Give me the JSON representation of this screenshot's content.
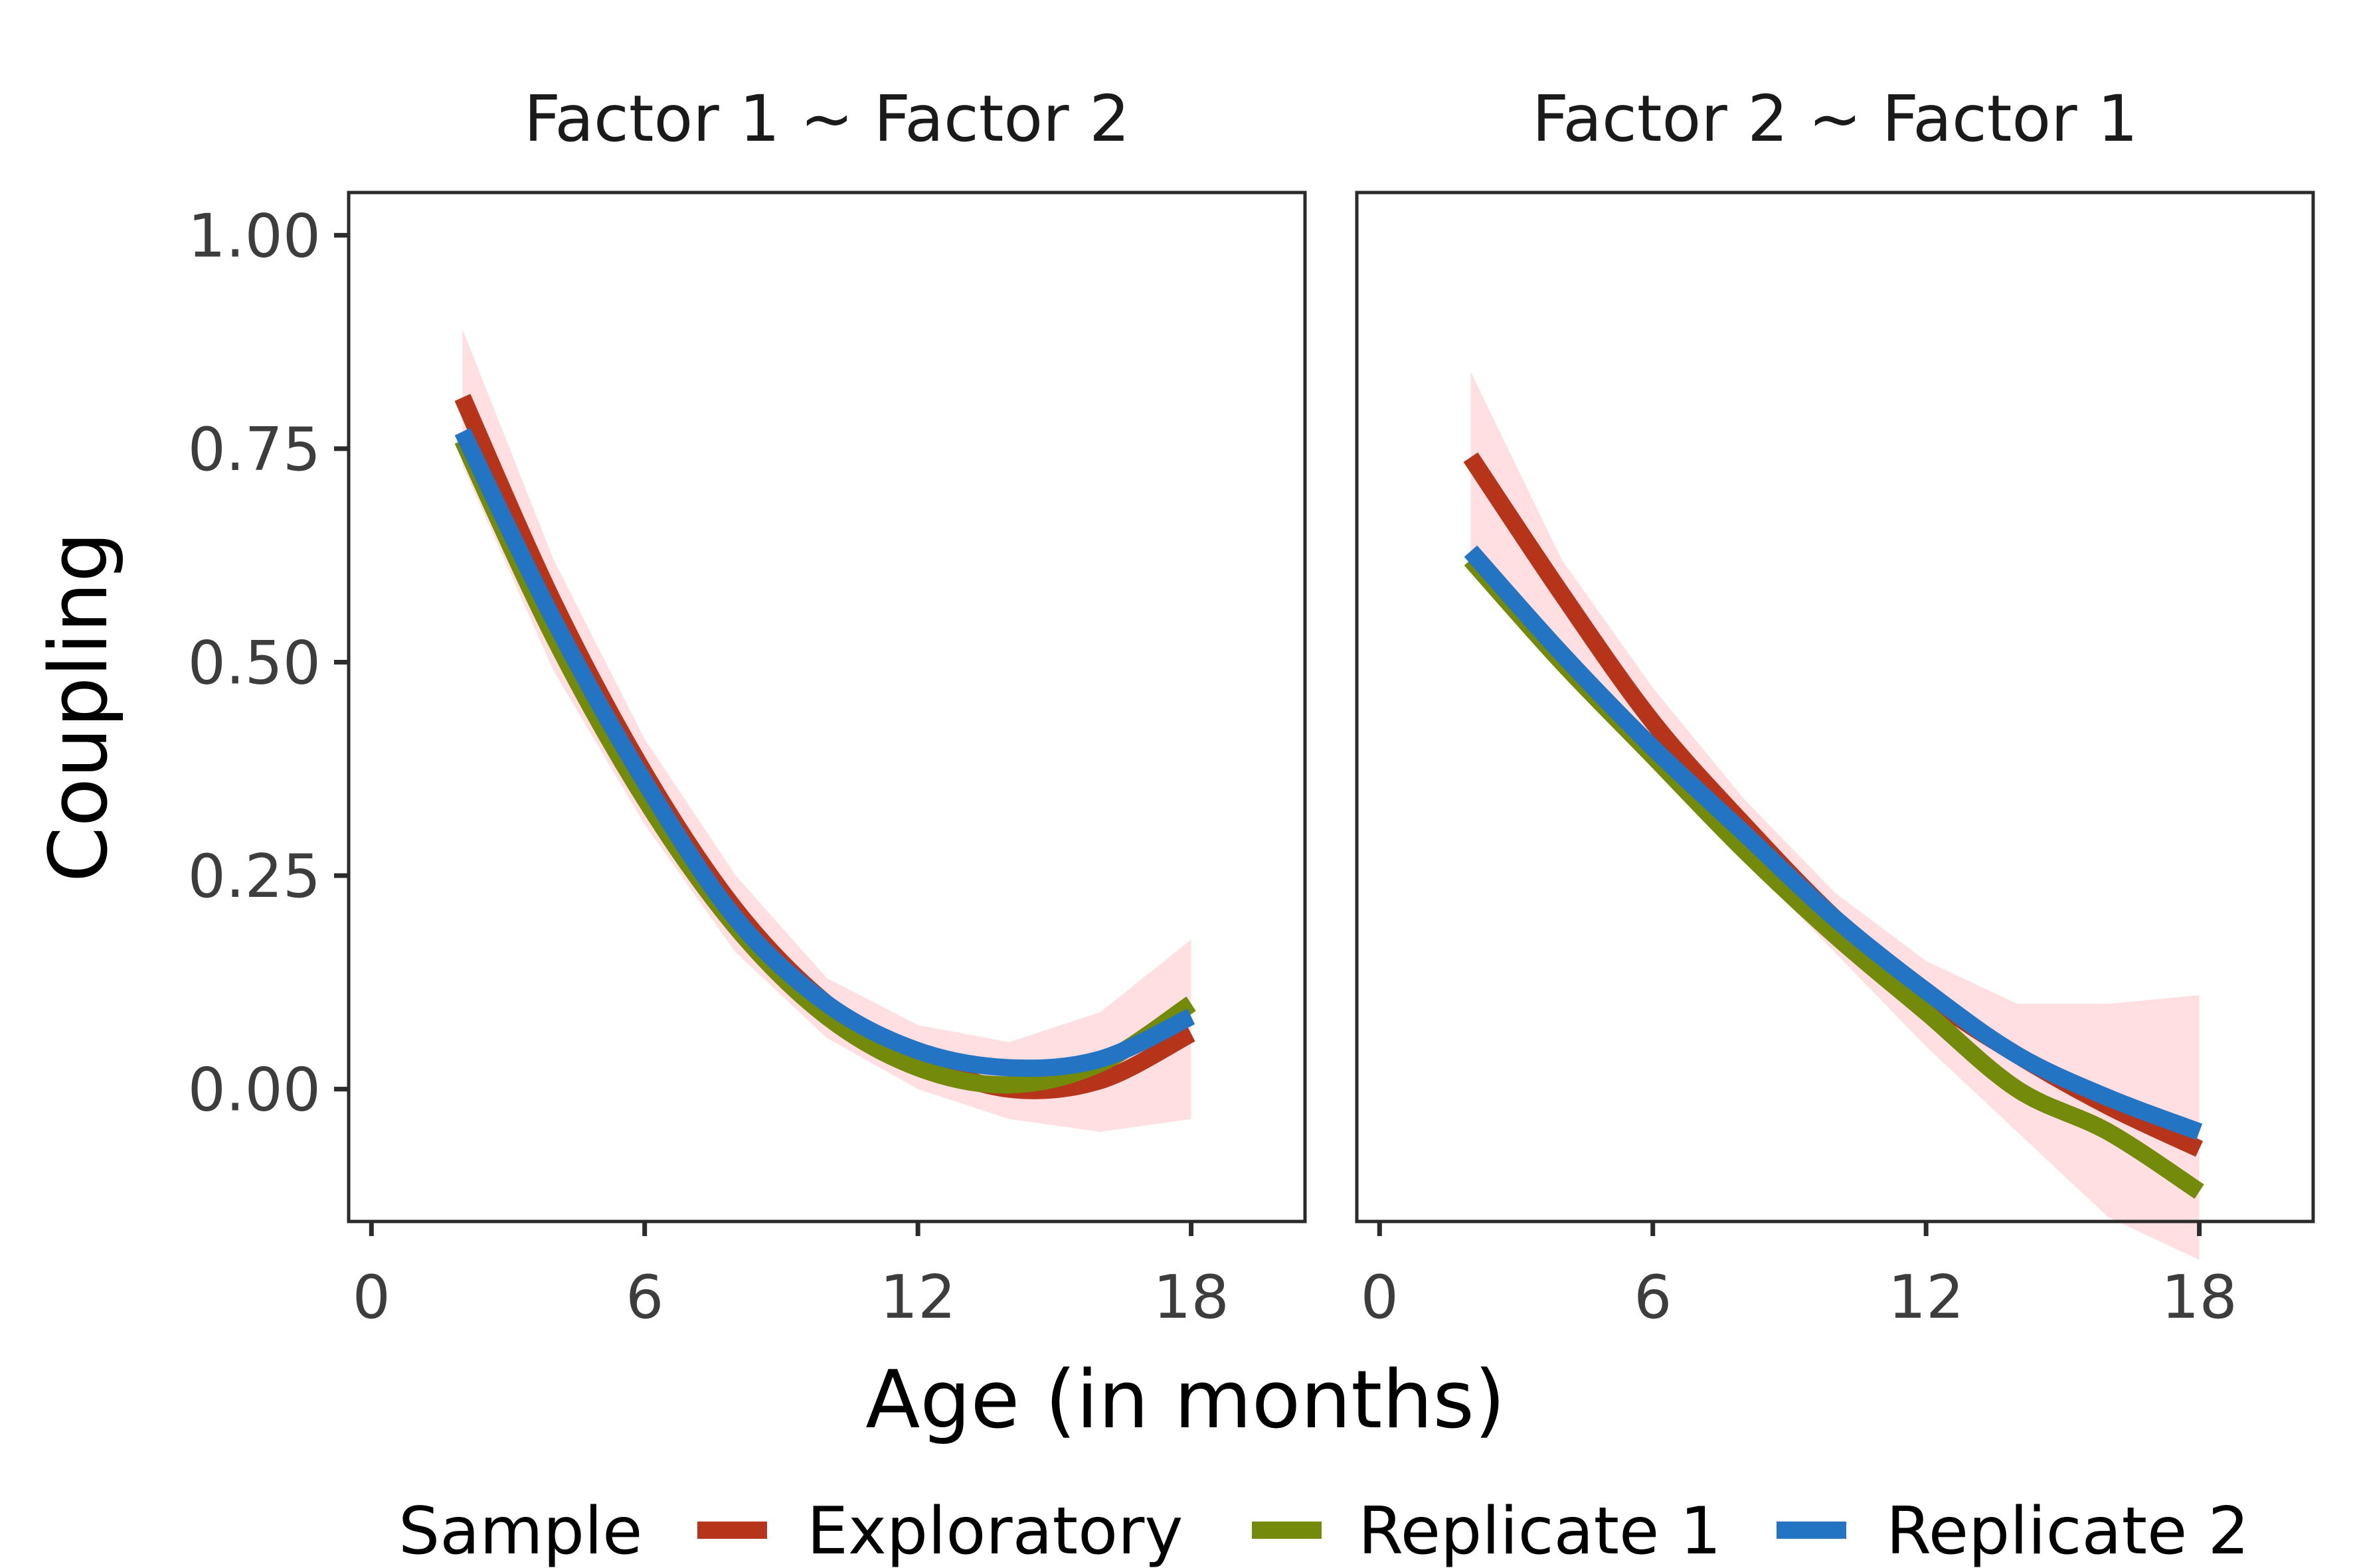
{
  "chart_data": {
    "type": "line",
    "xlabel": "Age (in months)",
    "ylabel": "Coupling",
    "xlim": [
      -0.5,
      20.5
    ],
    "ylim": [
      -0.155,
      1.05
    ],
    "xticks": [
      0,
      6,
      12,
      18
    ],
    "xtick_labels": [
      "0",
      "6",
      "12",
      "18"
    ],
    "yticks": [
      0,
      0.25,
      0.5,
      0.75,
      1
    ],
    "ytick_labels": [
      "0.00",
      "0.25",
      "0.50",
      "0.75",
      "1.00"
    ],
    "grid": false,
    "legend": {
      "title": "Sample",
      "position": "bottom",
      "entries": [
        "Exploratory",
        "Replicate 1",
        "Replicate 2"
      ]
    },
    "colors": {
      "Exploratory": "#b5341a",
      "Replicate 1": "#738a0a",
      "Replicate 2": "#2474c4",
      "ribbon": "#ffd9dc"
    },
    "panels": [
      {
        "title": "Factor 1 ~ Factor 2",
        "x": [
          2,
          4,
          6,
          8,
          10,
          12,
          14,
          16,
          18
        ],
        "ribbon": {
          "lower": [
            0.73,
            0.49,
            0.31,
            0.16,
            0.06,
            0.0,
            -0.035,
            -0.05,
            -0.035
          ],
          "upper": [
            0.89,
            0.62,
            0.41,
            0.25,
            0.13,
            0.075,
            0.055,
            0.09,
            0.175
          ]
        },
        "series": [
          {
            "name": "Exploratory",
            "values": [
              0.81,
              0.57,
              0.37,
              0.21,
              0.1,
              0.035,
              0.0,
              0.01,
              0.065
            ]
          },
          {
            "name": "Replicate 1",
            "values": [
              0.76,
              0.53,
              0.34,
              0.19,
              0.085,
              0.025,
              0.005,
              0.03,
              0.1
            ]
          },
          {
            "name": "Replicate 2",
            "values": [
              0.77,
              0.55,
              0.36,
              0.2,
              0.1,
              0.045,
              0.025,
              0.035,
              0.085
            ]
          }
        ]
      },
      {
        "title": "Factor 2 ~ Factor 1",
        "x": [
          2,
          4,
          6,
          8,
          10,
          12,
          14,
          16,
          18
        ],
        "ribbon": {
          "lower": [
            0.63,
            0.51,
            0.39,
            0.27,
            0.16,
            0.05,
            -0.05,
            -0.15,
            -0.2
          ],
          "upper": [
            0.84,
            0.62,
            0.47,
            0.34,
            0.23,
            0.15,
            0.1,
            0.1,
            0.11
          ]
        },
        "series": [
          {
            "name": "Exploratory",
            "values": [
              0.74,
              0.58,
              0.43,
              0.31,
              0.2,
              0.11,
              0.04,
              -0.02,
              -0.07
            ]
          },
          {
            "name": "Replicate 1",
            "values": [
              0.62,
              0.5,
              0.39,
              0.28,
              0.18,
              0.09,
              0.0,
              -0.05,
              -0.12
            ]
          },
          {
            "name": "Replicate 2",
            "values": [
              0.63,
              0.51,
              0.4,
              0.3,
              0.2,
              0.115,
              0.04,
              -0.01,
              -0.05
            ]
          }
        ]
      }
    ]
  }
}
